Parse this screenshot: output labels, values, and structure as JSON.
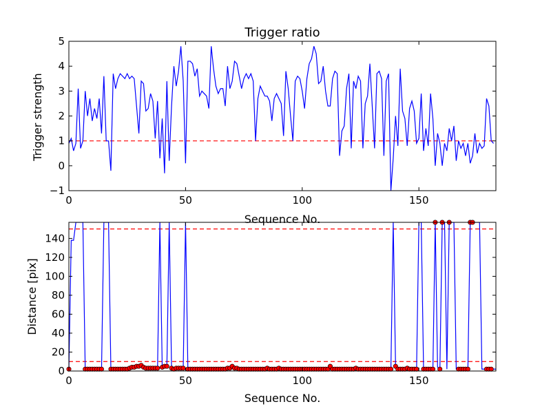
{
  "chart_data": [
    {
      "type": "line",
      "title": "Trigger ratio",
      "xlabel": "Sequence No.",
      "ylabel": "Trigger strength",
      "xlim": [
        0,
        183
      ],
      "ylim": [
        -1,
        5
      ],
      "xticks": [
        0,
        50,
        100,
        150
      ],
      "yticks": [
        -1,
        0,
        1,
        2,
        3,
        4,
        5
      ],
      "grid": false,
      "series": [
        {
          "color": "#0000ff",
          "values": [
            0.9,
            1.1,
            0.6,
            0.9,
            3.1,
            0.7,
            1.0,
            3.0,
            2.0,
            2.7,
            1.8,
            2.3,
            1.9,
            2.7,
            1.3,
            3.6,
            1.0,
            1.0,
            -0.2,
            3.7,
            3.1,
            3.5,
            3.7,
            3.6,
            3.5,
            3.7,
            3.5,
            3.6,
            3.5,
            2.4,
            1.3,
            3.4,
            3.3,
            2.2,
            2.3,
            2.9,
            2.6,
            1.1,
            2.6,
            0.3,
            1.9,
            -0.3,
            3.4,
            0.2,
            2.4,
            4.0,
            3.2,
            3.8,
            4.8,
            3.4,
            0.1,
            4.2,
            4.2,
            4.1,
            3.6,
            3.9,
            2.8,
            3.0,
            2.9,
            2.8,
            2.3,
            4.8,
            3.9,
            3.2,
            2.9,
            3.1,
            3.1,
            2.4,
            4.0,
            3.1,
            3.4,
            4.2,
            4.1,
            3.6,
            3.1,
            3.5,
            3.7,
            3.5,
            3.7,
            3.4,
            1.0,
            2.7,
            3.2,
            3.0,
            2.8,
            2.8,
            2.6,
            1.8,
            2.7,
            2.9,
            2.7,
            2.5,
            1.2,
            3.8,
            3.1,
            2.0,
            1.0,
            3.4,
            3.6,
            3.5,
            3.0,
            2.3,
            3.5,
            4.1,
            4.3,
            4.8,
            4.5,
            3.3,
            3.4,
            4.0,
            3.0,
            2.4,
            2.4,
            3.5,
            3.8,
            3.7,
            0.4,
            1.4,
            1.6,
            3.1,
            3.7,
            0.7,
            3.4,
            3.1,
            3.6,
            3.4,
            0.7,
            2.5,
            2.8,
            4.1,
            2.4,
            0.7,
            3.7,
            3.8,
            3.5,
            0.4,
            3.4,
            3.7,
            -1.0,
            0.3,
            2.0,
            0.8,
            3.9,
            2.2,
            1.9,
            0.8,
            2.3,
            2.6,
            2.2,
            0.9,
            1.1,
            2.9,
            0.6,
            1.5,
            0.8,
            2.9,
            1.9,
            0.0,
            1.3,
            0.9,
            0.0,
            0.9,
            0.6,
            1.5,
            1.0,
            1.6,
            0.2,
            1.0,
            0.7,
            0.9,
            0.4,
            0.9,
            0.1,
            0.4,
            1.3,
            0.5,
            0.9,
            0.7,
            0.8,
            2.7,
            2.4,
            1.0,
            0.9
          ]
        }
      ],
      "reference_lines": [
        {
          "y": 1.0,
          "color": "#ff0000",
          "style": "dashed"
        }
      ]
    },
    {
      "type": "line",
      "xlabel": "Sequence No.",
      "ylabel": "Distance [pix]",
      "xlim": [
        0,
        183
      ],
      "ylim": [
        0,
        157
      ],
      "xticks": [
        0,
        50,
        100,
        150
      ],
      "yticks": [
        0,
        20,
        40,
        60,
        80,
        100,
        120,
        140
      ],
      "grid": false,
      "series": [
        {
          "color": "#0000ff",
          "values": [
            2,
            138,
            138,
            157,
            157,
            157,
            157,
            2,
            2,
            2,
            2,
            2,
            2,
            2,
            2,
            157,
            157,
            157,
            2,
            2,
            2,
            2,
            2,
            2,
            2,
            2,
            3,
            4,
            4,
            5,
            5,
            6,
            4,
            3,
            3,
            3,
            3,
            3,
            3,
            157,
            4,
            5,
            5,
            157,
            3,
            2,
            3,
            3,
            3,
            3,
            157,
            2,
            2,
            2,
            2,
            2,
            2,
            2,
            2,
            2,
            2,
            2,
            2,
            2,
            2,
            2,
            2,
            2,
            3,
            3,
            5,
            3,
            3,
            2,
            2,
            2,
            2,
            2,
            2,
            2,
            2,
            2,
            2,
            2,
            2,
            3,
            2,
            2,
            2,
            2,
            3,
            2,
            2,
            2,
            2,
            2,
            2,
            2,
            2,
            2,
            2,
            2,
            2,
            2,
            2,
            2,
            2,
            2,
            2,
            2,
            2,
            2,
            5,
            2,
            2,
            2,
            2,
            2,
            2,
            2,
            2,
            2,
            2,
            3,
            2,
            2,
            2,
            2,
            2,
            2,
            2,
            2,
            2,
            2,
            2,
            2,
            2,
            2,
            2,
            157,
            5,
            2,
            2,
            2,
            2,
            3,
            2,
            2,
            2,
            2,
            157,
            157,
            2,
            2,
            2,
            2,
            2,
            157,
            4,
            2,
            157,
            157,
            2,
            157,
            157,
            157,
            2,
            2,
            2,
            2,
            2,
            2,
            157,
            157,
            157,
            157,
            157,
            2,
            2,
            2,
            2,
            2,
            2,
            2
          ]
        }
      ],
      "markers": {
        "color": "#ff0000",
        "indices": [
          0,
          7,
          8,
          9,
          10,
          11,
          12,
          13,
          14,
          18,
          19,
          20,
          21,
          22,
          23,
          24,
          25,
          26,
          27,
          28,
          29,
          30,
          31,
          32,
          33,
          34,
          35,
          36,
          37,
          38,
          40,
          41,
          42,
          44,
          45,
          46,
          47,
          48,
          49,
          51,
          52,
          53,
          54,
          55,
          56,
          57,
          58,
          59,
          60,
          61,
          62,
          63,
          64,
          65,
          66,
          67,
          68,
          69,
          70,
          71,
          72,
          73,
          74,
          75,
          76,
          77,
          78,
          79,
          80,
          81,
          82,
          83,
          84,
          85,
          86,
          87,
          88,
          89,
          90,
          91,
          92,
          93,
          94,
          95,
          96,
          97,
          98,
          99,
          100,
          101,
          102,
          103,
          104,
          105,
          106,
          107,
          108,
          109,
          110,
          111,
          112,
          113,
          114,
          115,
          116,
          117,
          118,
          119,
          120,
          121,
          122,
          123,
          124,
          125,
          126,
          127,
          128,
          129,
          130,
          131,
          132,
          133,
          134,
          135,
          136,
          137,
          138,
          140,
          141,
          142,
          143,
          144,
          145,
          146,
          147,
          148,
          149,
          152,
          153,
          154,
          155,
          156,
          157,
          159,
          160,
          163,
          167,
          168,
          169,
          170,
          171,
          172,
          173,
          179,
          180,
          181
        ]
      },
      "reference_lines": [
        {
          "y": 150,
          "color": "#ff0000",
          "style": "dashed"
        },
        {
          "y": 10,
          "color": "#ff0000",
          "style": "dashed"
        }
      ]
    }
  ]
}
